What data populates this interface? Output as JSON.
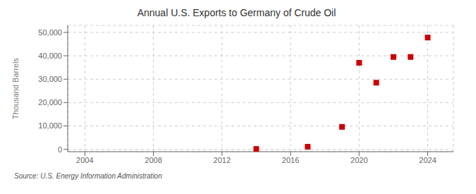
{
  "chart_data": {
    "type": "scatter",
    "title": "Annual U.S. Exports to Germany of Crude Oil",
    "y_label": "Thousand Barrels",
    "annotations": [
      "Source: U.S. Energy Information Administration"
    ],
    "x": [
      2014,
      2017,
      2019,
      2020,
      2021,
      2022,
      2023,
      2024
    ],
    "values": [
      150,
      1100,
      9600,
      37000,
      28500,
      39500,
      39500,
      47800
    ],
    "color": "#cc0000",
    "marker": "square",
    "xlim": [
      2003,
      2025.5
    ],
    "xticks": [
      2004,
      2008,
      2012,
      2016,
      2020,
      2024
    ],
    "ylim": [
      -1000,
      53000
    ],
    "yticks": [
      0,
      {
        "value": 10000,
        "label": "10,000"
      },
      {
        "value": 20000,
        "label": "20,000"
      },
      {
        "value": 30000,
        "label": "30,000"
      },
      {
        "value": 40000,
        "label": "40,000"
      },
      {
        "value": 50000,
        "label": "50,000"
      }
    ],
    "grid": true
  }
}
